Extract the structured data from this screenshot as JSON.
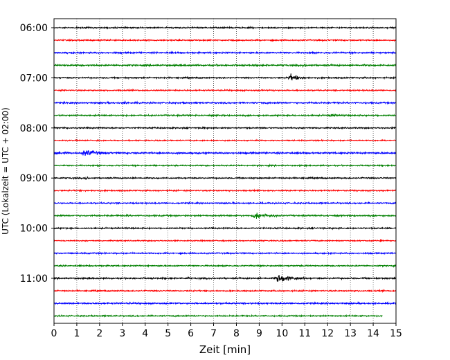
{
  "chart_data": {
    "type": "line",
    "xlabel": "Zeit  [min]",
    "ylabel": "UTC (Lokalzeit = UTC + 02:00)",
    "xlim": [
      0,
      15
    ],
    "x_ticks": [
      "0",
      "1",
      "2",
      "3",
      "4",
      "5",
      "6",
      "7",
      "8",
      "9",
      "10",
      "11",
      "12",
      "13",
      "14",
      "15"
    ],
    "y_tick_labels": [
      "06:00",
      "07:00",
      "08:00",
      "09:00",
      "10:00",
      "11:00"
    ],
    "y_tick_rows": [
      0,
      4,
      8,
      12,
      16,
      20
    ],
    "grid": "vertical dotted lines at each minute",
    "row_colors": [
      "#000000",
      "#ff0000",
      "#0000ff",
      "#008000"
    ],
    "rows": [
      {
        "start": "06:00",
        "end_min": 15,
        "amplitude": 0.8,
        "events": []
      },
      {
        "start": "06:15",
        "end_min": 15,
        "amplitude": 0.8,
        "events": []
      },
      {
        "start": "06:30",
        "end_min": 15,
        "amplitude": 0.9,
        "events": [
          {
            "t": 11.3,
            "dur": 0.3,
            "amp": 3.5
          },
          {
            "t": 12.2,
            "dur": 1.0,
            "amp": 2.5
          }
        ]
      },
      {
        "start": "06:45",
        "end_min": 15,
        "amplitude": 1.0,
        "events": [
          {
            "t": 10.8,
            "dur": 1.2,
            "amp": 3.5
          }
        ]
      },
      {
        "start": "07:00",
        "end_min": 15,
        "amplitude": 0.8,
        "events": [
          {
            "t": 10.2,
            "dur": 1.5,
            "amp": 7
          }
        ]
      },
      {
        "start": "07:15",
        "end_min": 15,
        "amplitude": 0.8,
        "events": [
          {
            "t": 9.6,
            "dur": 0.3,
            "amp": 3.5
          }
        ]
      },
      {
        "start": "07:30",
        "end_min": 15,
        "amplitude": 0.9,
        "events": [
          {
            "t": 3.0,
            "dur": 0.8,
            "amp": 3.5
          },
          {
            "t": 5.6,
            "dur": 0.4,
            "amp": 3
          },
          {
            "t": 9.1,
            "dur": 0.3,
            "amp": 3
          },
          {
            "t": 11.0,
            "dur": 1.5,
            "amp": 2
          }
        ]
      },
      {
        "start": "07:45",
        "end_min": 15,
        "amplitude": 0.9,
        "events": [
          {
            "t": 12.0,
            "dur": 1.3,
            "amp": 3.5
          }
        ]
      },
      {
        "start": "08:00",
        "end_min": 15,
        "amplitude": 0.8,
        "events": [
          {
            "t": 6.5,
            "dur": 0.3,
            "amp": 3.5
          }
        ]
      },
      {
        "start": "08:15",
        "end_min": 15,
        "amplitude": 0.7,
        "events": [
          {
            "t": 14.9,
            "dur": 0.1,
            "amp": 3
          }
        ]
      },
      {
        "start": "08:30",
        "end_min": 15,
        "amplitude": 1.0,
        "events": [
          {
            "t": 0.0,
            "dur": 1.0,
            "amp": 3
          },
          {
            "t": 1.1,
            "dur": 2.3,
            "amp": 7
          }
        ]
      },
      {
        "start": "08:45",
        "end_min": 15,
        "amplitude": 0.8,
        "events": []
      },
      {
        "start": "09:00",
        "end_min": 15,
        "amplitude": 0.8,
        "events": [
          {
            "t": 1.3,
            "dur": 0.5,
            "amp": 4.5
          }
        ]
      },
      {
        "start": "09:15",
        "end_min": 15,
        "amplitude": 0.8,
        "events": []
      },
      {
        "start": "09:30",
        "end_min": 15,
        "amplitude": 0.8,
        "events": []
      },
      {
        "start": "09:45",
        "end_min": 15,
        "amplitude": 0.9,
        "events": [
          {
            "t": 3.2,
            "dur": 0.2,
            "amp": 4
          },
          {
            "t": 8.6,
            "dur": 2.0,
            "amp": 7.5
          }
        ]
      },
      {
        "start": "10:00",
        "end_min": 15,
        "amplitude": 0.8,
        "events": [
          {
            "t": 10.8,
            "dur": 0.3,
            "amp": 2.5
          }
        ]
      },
      {
        "start": "10:15",
        "end_min": 15,
        "amplitude": 0.7,
        "events": [
          {
            "t": 14.3,
            "dur": 0.1,
            "amp": 6
          }
        ]
      },
      {
        "start": "10:30",
        "end_min": 15,
        "amplitude": 0.8,
        "events": []
      },
      {
        "start": "10:45",
        "end_min": 15,
        "amplitude": 0.8,
        "events": []
      },
      {
        "start": "11:00",
        "end_min": 15,
        "amplitude": 0.9,
        "events": [
          {
            "t": 5.8,
            "dur": 0.5,
            "amp": 3
          },
          {
            "t": 9.6,
            "dur": 2.2,
            "amp": 9
          }
        ]
      },
      {
        "start": "11:15",
        "end_min": 15,
        "amplitude": 0.8,
        "events": []
      },
      {
        "start": "11:30",
        "end_min": 15,
        "amplitude": 0.9,
        "events": [
          {
            "t": 0.2,
            "dur": 0.2,
            "amp": 3
          },
          {
            "t": 3.3,
            "dur": 0.2,
            "amp": 3
          }
        ]
      },
      {
        "start": "11:45",
        "end_min": 14.4,
        "amplitude": 0.8,
        "events": []
      }
    ]
  }
}
